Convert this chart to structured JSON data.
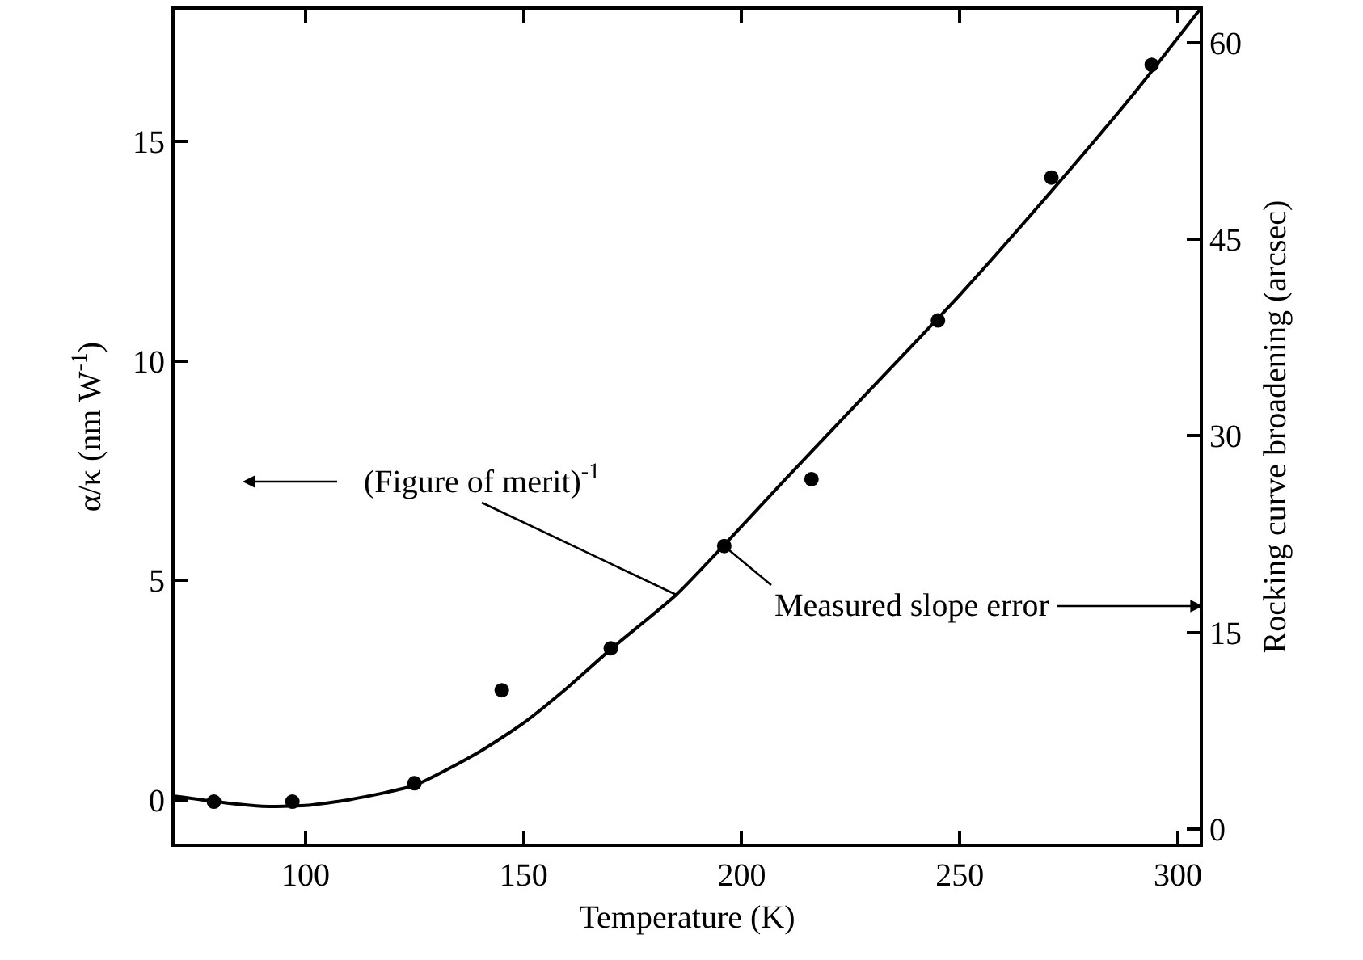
{
  "chart_data": {
    "type": "line",
    "xlabel": "Temperature (K)",
    "ylabel": "α/κ (nm W$^{-1}$)",
    "y2label": "Rocking curve broadening (arcsec)",
    "xlim": [
      70,
      305
    ],
    "xticks": [
      100,
      150,
      200,
      250,
      300
    ],
    "ylim": [
      -1,
      18
    ],
    "yticks": [
      0,
      5,
      10,
      15
    ],
    "y2lim": [
      -1.1,
      62.5
    ],
    "y2ticks": [
      0,
      15,
      30,
      45,
      60
    ],
    "series": [
      {
        "type": "line",
        "color": "#000000",
        "marker": "none",
        "line_style": "solid",
        "x": [
          70,
          80,
          90,
          100,
          110,
          125,
          140,
          150,
          160,
          170,
          185,
          195,
          210,
          230,
          250,
          270,
          290,
          305
        ],
        "values": [
          0.08,
          -0.05,
          -0.15,
          -0.13,
          0.0,
          0.33,
          1.1,
          1.75,
          2.55,
          3.43,
          4.67,
          5.7,
          7.3,
          9.4,
          11.5,
          13.75,
          16.1,
          18.0
        ]
      },
      {
        "type": "scatter",
        "axis": "y2",
        "color": "#000000",
        "marker": "circle",
        "x": [
          79,
          97,
          125,
          145,
          170,
          196,
          216,
          245,
          271,
          294
        ],
        "values": [
          2.1,
          2.1,
          3.5,
          10.6,
          13.8,
          21.6,
          26.7,
          38.8,
          49.7,
          58.3
        ]
      }
    ],
    "annotations": [
      {
        "text": "(Figure of merit)$^{-1}$",
        "x": 185,
        "y": 4.67
      },
      {
        "text": "Measured slope error",
        "x": 196,
        "y": 5.78
      }
    ]
  }
}
